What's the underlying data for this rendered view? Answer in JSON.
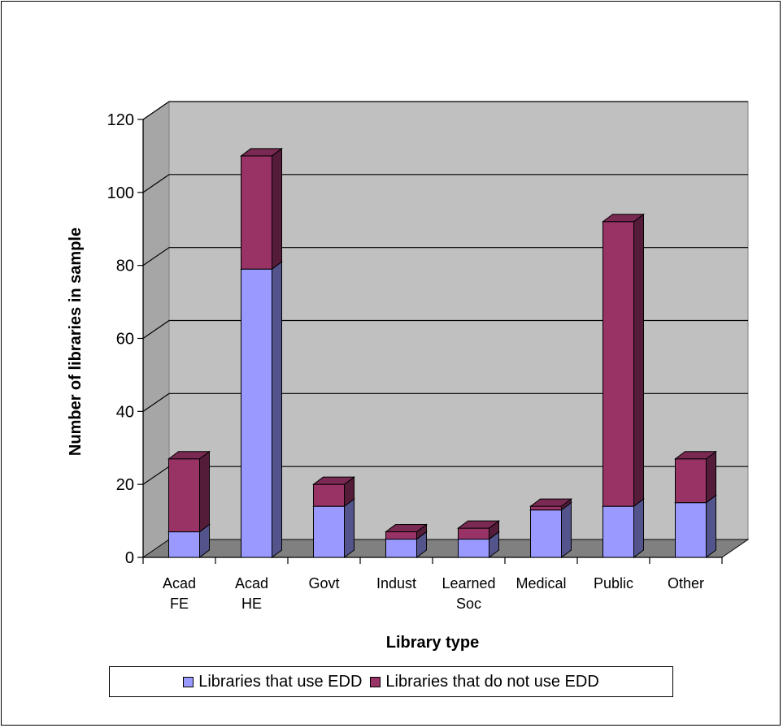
{
  "chart_data": {
    "type": "bar",
    "stacked": true,
    "style": "3d",
    "categories": [
      [
        "Acad",
        "FE"
      ],
      [
        "Acad",
        "HE"
      ],
      [
        "Govt"
      ],
      [
        "Indust"
      ],
      [
        "Learned",
        "Soc"
      ],
      [
        "Medical"
      ],
      [
        "Public"
      ],
      [
        "Other"
      ]
    ],
    "series": [
      {
        "name": "Libraries that use EDD",
        "color": "#9999ff",
        "values": [
          7,
          79,
          14,
          5,
          5,
          13,
          14,
          15
        ]
      },
      {
        "name": "Libraries that do not use EDD",
        "color": "#993366",
        "values": [
          20,
          31,
          6,
          2,
          3,
          1,
          78,
          12
        ]
      }
    ],
    "ylim": [
      0,
      120
    ],
    "yticks": [
      0,
      20,
      40,
      60,
      80,
      100,
      120
    ],
    "xlabel": "Library type",
    "ylabel": "Number of libraries in sample",
    "grid": true,
    "legend_position": "bottom",
    "plot_background": "#c0c0c0"
  }
}
